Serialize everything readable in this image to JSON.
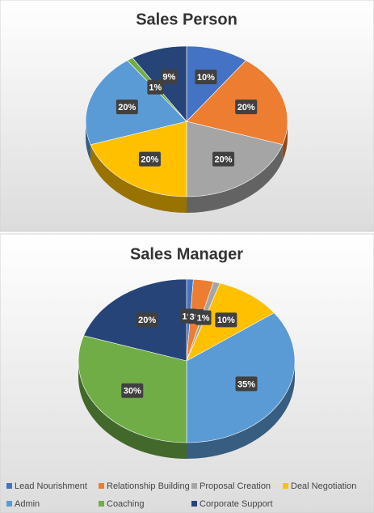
{
  "chart_data": [
    {
      "type": "pie",
      "title": "Sales Person",
      "values": [
        10,
        20,
        20,
        20,
        20,
        1,
        9
      ],
      "value_labels": [
        "10%",
        "20%",
        "20%",
        "20%",
        "20%",
        "1%",
        "9%"
      ]
    },
    {
      "type": "pie",
      "title": "Sales Manager",
      "values": [
        1,
        3,
        1,
        10,
        35,
        30,
        20
      ],
      "value_labels": [
        "1%",
        "3%",
        "1%",
        "10%",
        "35%",
        "30%",
        "20%"
      ]
    }
  ],
  "legend": {
    "position": "bottom",
    "entries": [
      "Lead Nourishment",
      "Relationship Building",
      "Proposal Creation",
      "Deal Negotiation",
      "Admin",
      "Coaching",
      "Corporate Support"
    ],
    "colors": [
      "#4472c4",
      "#ed7d31",
      "#a5a5a5",
      "#ffc000",
      "#5b9bd5",
      "#70ad47",
      "#264478"
    ]
  }
}
